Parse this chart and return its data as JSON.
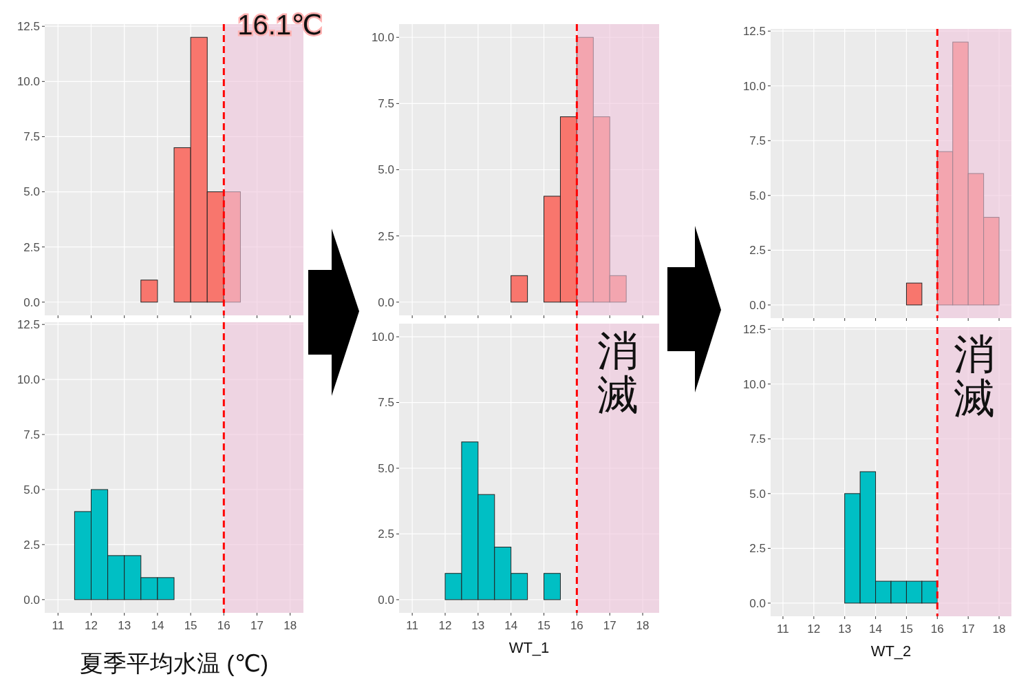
{
  "chart_data": [
    {
      "type": "histogram",
      "bins": [
        11.5,
        12,
        12.5,
        13,
        13.5,
        14,
        14.5,
        15,
        15.5,
        16,
        16.5,
        17,
        17.5,
        18
      ],
      "values": [
        0,
        0,
        0,
        0,
        1,
        0,
        7,
        12,
        5,
        5,
        0,
        0,
        0
      ],
      "color": "#f8766d",
      "xlim": [
        10.6,
        18.4
      ],
      "ylim": [
        -0.6,
        12.6
      ],
      "xticks": [
        11,
        12,
        13,
        14,
        15,
        16,
        17,
        18
      ],
      "yticks": [
        {
          "value": 0,
          "label": "0.0"
        },
        2.5,
        {
          "value": 5,
          "label": "5.0"
        },
        7.5,
        {
          "value": 10,
          "label": "10.0"
        },
        12.5
      ],
      "grid": true,
      "tick_labels": "y",
      "ref_lines": [
        {
          "axis": "x",
          "value": 16,
          "label": "16.1℃",
          "color": "#ff0000",
          "line_style": "dashed"
        }
      ],
      "bands": [
        {
          "axis": "x",
          "from": 16,
          "to": 18.4,
          "color": "#f0c4dc"
        }
      ]
    },
    {
      "type": "histogram",
      "bins": [
        11.5,
        12,
        12.5,
        13,
        13.5,
        14,
        14.5,
        15,
        15.5,
        16,
        16.5,
        17,
        17.5,
        18
      ],
      "values": [
        4,
        5,
        2,
        2,
        1,
        1,
        0,
        0,
        0,
        0,
        0,
        0,
        0
      ],
      "color": "#00bfc4",
      "xlim": [
        10.6,
        18.4
      ],
      "ylim": [
        -0.6,
        12.6
      ],
      "xticks": [
        11,
        12,
        13,
        14,
        15,
        16,
        17,
        18
      ],
      "yticks": [
        {
          "value": 0,
          "label": "0.0"
        },
        2.5,
        {
          "value": 5,
          "label": "5.0"
        },
        7.5,
        {
          "value": 10,
          "label": "10.0"
        },
        12.5
      ],
      "grid": true,
      "xlabel": "夏季平均水温 (℃)",
      "ref_lines": [
        {
          "axis": "x",
          "value": 16,
          "color": "#ff0000",
          "line_style": "dashed"
        }
      ],
      "bands": [
        {
          "axis": "x",
          "from": 16,
          "to": 18.4,
          "color": "#f0c4dc"
        }
      ]
    },
    {
      "type": "histogram",
      "bins": [
        11.5,
        12,
        12.5,
        13,
        13.5,
        14,
        14.5,
        15,
        15.5,
        16,
        16.5,
        17,
        17.5,
        18
      ],
      "values": [
        0,
        0,
        0,
        0,
        0,
        1,
        0,
        4,
        7,
        10,
        7,
        1,
        0
      ],
      "color": "#f8766d",
      "xlim": [
        10.6,
        18.5
      ],
      "ylim": [
        -0.5,
        10.5
      ],
      "xticks": [
        11,
        12,
        13,
        14,
        15,
        16,
        17,
        18
      ],
      "yticks": [
        {
          "value": 0,
          "label": "0.0"
        },
        2.5,
        {
          "value": 5,
          "label": "5.0"
        },
        7.5,
        {
          "value": 10,
          "label": "10.0"
        }
      ],
      "grid": true,
      "tick_labels": "y",
      "ref_lines": [
        {
          "axis": "x",
          "value": 16,
          "color": "#ff0000",
          "line_style": "dashed"
        }
      ],
      "bands": [
        {
          "axis": "x",
          "from": 16,
          "to": 18.5,
          "color": "#f0c4dc"
        }
      ]
    },
    {
      "type": "histogram",
      "bins": [
        11.5,
        12,
        12.5,
        13,
        13.5,
        14,
        14.5,
        15,
        15.5,
        16,
        16.5,
        17,
        17.5,
        18
      ],
      "values": [
        0,
        1,
        6,
        4,
        2,
        1,
        0,
        1,
        0,
        0,
        0,
        0,
        0
      ],
      "color": "#00bfc4",
      "xlim": [
        10.6,
        18.5
      ],
      "ylim": [
        -0.5,
        10.5
      ],
      "xticks": [
        11,
        12,
        13,
        14,
        15,
        16,
        17,
        18
      ],
      "yticks": [
        {
          "value": 0,
          "label": "0.0"
        },
        2.5,
        {
          "value": 5,
          "label": "5.0"
        },
        7.5,
        {
          "value": 10,
          "label": "10.0"
        }
      ],
      "grid": true,
      "xlabel": "WT_1",
      "annotations": [
        "消滅"
      ],
      "ref_lines": [
        {
          "axis": "x",
          "value": 16,
          "color": "#ff0000",
          "line_style": "dashed"
        }
      ],
      "bands": [
        {
          "axis": "x",
          "from": 16,
          "to": 18.5,
          "color": "#f0c4dc"
        }
      ]
    },
    {
      "type": "histogram",
      "bins": [
        11.5,
        12,
        12.5,
        13,
        13.5,
        14,
        14.5,
        15,
        15.5,
        16,
        16.5,
        17,
        17.5,
        18
      ],
      "values": [
        0,
        0,
        0,
        0,
        0,
        0,
        0,
        1,
        0,
        7,
        12,
        6,
        4
      ],
      "color": "#f8766d",
      "xlim": [
        10.6,
        18.4
      ],
      "ylim": [
        -0.6,
        12.6
      ],
      "xticks": [
        11,
        12,
        13,
        14,
        15,
        16,
        17,
        18
      ],
      "yticks": [
        {
          "value": 0,
          "label": "0.0"
        },
        2.5,
        {
          "value": 5,
          "label": "5.0"
        },
        7.5,
        {
          "value": 10,
          "label": "10.0"
        },
        12.5
      ],
      "grid": true,
      "tick_labels": "y",
      "ref_lines": [
        {
          "axis": "x",
          "value": 16,
          "color": "#ff0000",
          "line_style": "dashed"
        }
      ],
      "bands": [
        {
          "axis": "x",
          "from": 16,
          "to": 18.4,
          "color": "#f0c4dc"
        }
      ]
    },
    {
      "type": "histogram",
      "bins": [
        11.5,
        12,
        12.5,
        13,
        13.5,
        14,
        14.5,
        15,
        15.5,
        16,
        16.5,
        17,
        17.5,
        18
      ],
      "values": [
        0,
        0,
        0,
        5,
        6,
        1,
        1,
        1,
        1,
        0,
        0,
        0,
        0
      ],
      "color": "#00bfc4",
      "xlim": [
        10.6,
        18.4
      ],
      "ylim": [
        -0.6,
        12.6
      ],
      "xticks": [
        11,
        12,
        13,
        14,
        15,
        16,
        17,
        18
      ],
      "yticks": [
        {
          "value": 0,
          "label": "0.0"
        },
        2.5,
        {
          "value": 5,
          "label": "5.0"
        },
        7.5,
        {
          "value": 10,
          "label": "10.0"
        },
        12.5
      ],
      "grid": true,
      "xlabel": "WT_2",
      "annotations": [
        "消滅"
      ],
      "ref_lines": [
        {
          "axis": "x",
          "value": 16,
          "color": "#ff0000",
          "line_style": "dashed"
        }
      ],
      "bands": [
        {
          "axis": "x",
          "from": 16,
          "to": 18.4,
          "color": "#f0c4dc"
        }
      ]
    }
  ]
}
